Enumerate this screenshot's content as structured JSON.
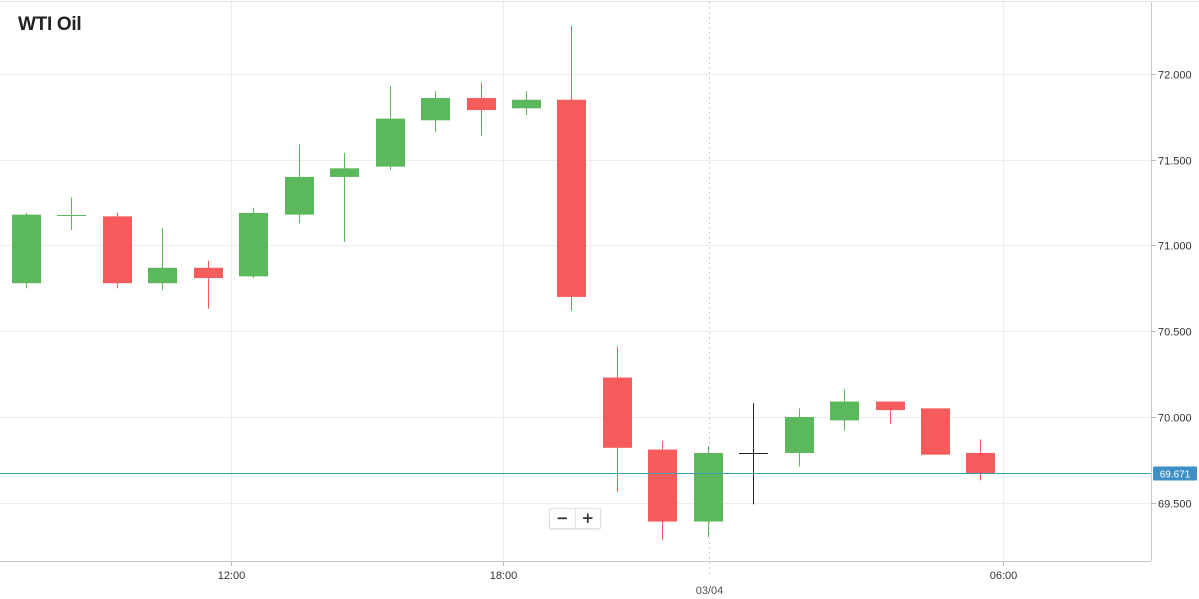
{
  "title": "WTI Oil",
  "zoom": {
    "minus_label": "−",
    "plus_label": "+"
  },
  "colors": {
    "up": "#5cb85c",
    "down": "#f75c5c",
    "doji": "#222222",
    "price_line": "#3b9fb2",
    "price_label_bg": "#3d8fc6"
  },
  "chart_data": {
    "type": "candlestick",
    "title": "WTI Oil",
    "interval_hours": 1,
    "current_price": 69.671,
    "current_price_label": "69.671",
    "y_ticks": [
      "72.000",
      "71.500",
      "71.000",
      "70.500",
      "70.000",
      "69.500"
    ],
    "y_tick_values": [
      72.0,
      71.5,
      71.0,
      70.5,
      70.0,
      69.5
    ],
    "ylim": [
      69.16,
      72.42
    ],
    "x_tick_labels": [
      {
        "label": "12:00",
        "index": 4.5
      },
      {
        "label": "18:00",
        "index": 10.5
      },
      {
        "label": "06:00",
        "index": 21.5
      }
    ],
    "date_separator": {
      "label": "03/04",
      "index": 15.0
    },
    "xlim": [
      -0.5,
      24.5
    ],
    "grid": true,
    "candles": [
      {
        "o": 70.78,
        "h": 71.19,
        "l": 70.75,
        "c": 71.18
      },
      {
        "o": 71.18,
        "h": 71.28,
        "l": 71.09,
        "c": 71.18
      },
      {
        "o": 71.17,
        "h": 71.19,
        "l": 70.75,
        "c": 70.78
      },
      {
        "o": 70.78,
        "h": 71.1,
        "l": 70.74,
        "c": 70.87
      },
      {
        "o": 70.87,
        "h": 70.91,
        "l": 70.63,
        "c": 70.81
      },
      {
        "o": 70.82,
        "h": 71.22,
        "l": 70.81,
        "c": 71.19
      },
      {
        "o": 71.18,
        "h": 71.59,
        "l": 71.13,
        "c": 71.4
      },
      {
        "o": 71.4,
        "h": 71.54,
        "l": 71.02,
        "c": 71.45
      },
      {
        "o": 71.46,
        "h": 71.93,
        "l": 71.44,
        "c": 71.74
      },
      {
        "o": 71.73,
        "h": 71.9,
        "l": 71.66,
        "c": 71.86
      },
      {
        "o": 71.86,
        "h": 71.95,
        "l": 71.64,
        "c": 71.79
      },
      {
        "o": 71.8,
        "h": 71.9,
        "l": 71.76,
        "c": 71.85
      },
      {
        "o": 71.85,
        "h": 72.28,
        "l": 70.62,
        "c": 70.7
      },
      {
        "o": 70.23,
        "h": 70.41,
        "l": 69.56,
        "c": 69.82
      },
      {
        "o": 69.81,
        "h": 69.86,
        "l": 69.28,
        "c": 69.39
      },
      {
        "o": 69.39,
        "h": 69.83,
        "l": 69.3,
        "c": 69.79
      },
      {
        "o": 69.79,
        "h": 70.08,
        "l": 69.49,
        "c": 69.79
      },
      {
        "o": 69.79,
        "h": 70.05,
        "l": 69.71,
        "c": 70.0
      },
      {
        "o": 69.98,
        "h": 70.16,
        "l": 69.92,
        "c": 70.09
      },
      {
        "o": 70.09,
        "h": 70.09,
        "l": 69.96,
        "c": 70.04
      },
      {
        "o": 70.05,
        "h": 70.05,
        "l": 69.78,
        "c": 69.78
      },
      {
        "o": 69.79,
        "h": 69.87,
        "l": 69.63,
        "c": 69.67
      }
    ]
  }
}
